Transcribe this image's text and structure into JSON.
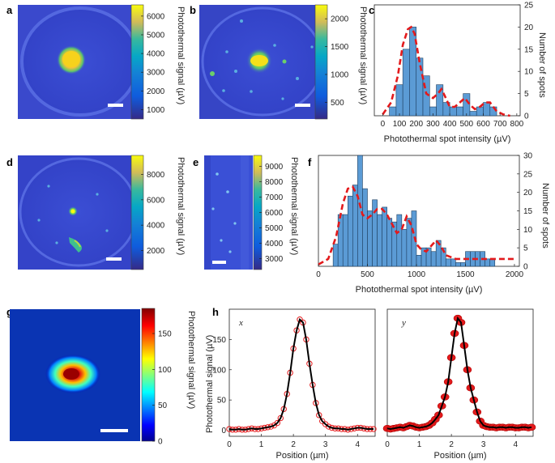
{
  "colors": {
    "bar_fill": "#5b9bd5",
    "fit_line": "#e31a1c",
    "profile_line": "#000000",
    "parula_dark": "#352a87",
    "parula_mid": "#1fb3b4",
    "parula_yellow": "#f9fb0e",
    "jet_high": "#800000"
  },
  "panel_labels": [
    "a",
    "b",
    "c",
    "d",
    "e",
    "f",
    "g",
    "h"
  ],
  "images": {
    "a": {
      "colorbar": {
        "ticks": [
          "6000",
          "5000",
          "4000",
          "3000",
          "2000",
          "1000"
        ],
        "values": [
          6000,
          5000,
          4000,
          3000,
          2000,
          1000
        ],
        "min": 500,
        "max": 6600,
        "label": "Photothermal signal (µV)"
      }
    },
    "b": {
      "colorbar": {
        "ticks": [
          "2000",
          "1500",
          "1000",
          "500"
        ],
        "values": [
          2000,
          1500,
          1000,
          500
        ],
        "min": 200,
        "max": 2250,
        "label": "Photothermal signal (µV)"
      }
    },
    "d": {
      "colorbar": {
        "ticks": [
          "8000",
          "6000",
          "4000",
          "2000"
        ],
        "values": [
          8000,
          6000,
          4000,
          2000
        ],
        "min": 500,
        "max": 9500,
        "label": "Photothermal signal (µV)"
      }
    },
    "e": {
      "colorbar": {
        "ticks": [
          "9000",
          "8000",
          "7000",
          "6000",
          "5000",
          "4000",
          "3000"
        ],
        "values": [
          9000,
          8000,
          7000,
          6000,
          5000,
          4000,
          3000
        ],
        "min": 2300,
        "max": 9700,
        "label": "Photothermal signal (µV)"
      }
    },
    "g": {
      "colorbar": {
        "ticks": [
          "150",
          "100",
          "50",
          "0"
        ],
        "values": [
          150,
          100,
          50,
          0
        ],
        "min": 0,
        "max": 185,
        "label": "Photothermal signal (µV)"
      }
    }
  },
  "chart_data": [
    {
      "panel": "c",
      "type": "bar",
      "xlabel": "Photothermal spot intensity (µV)",
      "ylabel": "Number of spots",
      "xlim": [
        -50,
        820
      ],
      "ylim": [
        0,
        25
      ],
      "xticks": [
        0,
        100,
        200,
        300,
        400,
        500,
        600,
        700,
        800
      ],
      "yticks": [
        0,
        5,
        10,
        15,
        20,
        25
      ],
      "bin_width": 40,
      "bin_starts": [
        40,
        80,
        120,
        160,
        200,
        240,
        280,
        320,
        360,
        400,
        440,
        480,
        520,
        560,
        600,
        640,
        680
      ],
      "values": [
        2,
        7,
        15,
        20,
        13,
        9,
        2,
        7,
        3,
        2,
        2,
        5,
        1,
        2,
        3,
        2,
        0
      ],
      "fit_x": [
        0,
        50,
        90,
        120,
        150,
        170,
        190,
        220,
        260,
        300,
        330,
        350,
        370,
        400,
        430,
        460,
        490,
        520,
        550,
        580,
        610,
        640,
        680,
        720,
        760
      ],
      "fit_y": [
        0.3,
        3,
        9,
        16,
        19.5,
        20,
        18.5,
        12,
        5,
        4,
        5,
        6,
        4.5,
        2,
        2,
        3,
        4,
        2.5,
        1.5,
        2,
        3,
        3,
        1,
        0.3,
        0
      ]
    },
    {
      "panel": "f",
      "type": "bar",
      "xlabel": "Photothermal spot intensity (µV)",
      "ylabel": "Number of spots",
      "xlim": [
        0,
        2050
      ],
      "ylim": [
        0,
        30
      ],
      "xticks": [
        0,
        500,
        1000,
        1500,
        2000
      ],
      "yticks": [
        0,
        5,
        10,
        15,
        20,
        25,
        30
      ],
      "bin_width": 50,
      "bin_starts": [
        150,
        200,
        250,
        300,
        350,
        400,
        450,
        500,
        550,
        600,
        650,
        700,
        750,
        800,
        850,
        900,
        950,
        1000,
        1050,
        1100,
        1150,
        1200,
        1250,
        1300,
        1350,
        1400,
        1450,
        1500,
        1550,
        1600,
        1650,
        1700,
        1750,
        1800
      ],
      "values": [
        6,
        14,
        14,
        19,
        22,
        30,
        21,
        15,
        18,
        14,
        16,
        13,
        12,
        14,
        10,
        13,
        15,
        3,
        5,
        5,
        4,
        7,
        5,
        2,
        2,
        1,
        1,
        4,
        4,
        4,
        4,
        2,
        2,
        0
      ],
      "fit_x": [
        0,
        100,
        180,
        250,
        300,
        350,
        400,
        450,
        500,
        550,
        600,
        650,
        700,
        750,
        800,
        850,
        900,
        950,
        1000,
        1050,
        1100,
        1150,
        1200,
        1250,
        1300,
        1400,
        1500,
        1600,
        1700,
        1800,
        1900,
        2000
      ],
      "fit_y": [
        0.5,
        2,
        8,
        17,
        21,
        21.5,
        19,
        14,
        13,
        14,
        15.5,
        15.5,
        14,
        11.5,
        9,
        10,
        13.5,
        11,
        6,
        4.5,
        4,
        5.5,
        7,
        5.5,
        3,
        2,
        2,
        2,
        2,
        2,
        2,
        2
      ]
    },
    {
      "panel": "h-x",
      "type": "line",
      "label": "x",
      "xlabel": "Position (µm)",
      "ylabel": "Photothermal signal (µV)",
      "xlim": [
        0,
        4.55
      ],
      "ylim": [
        -10,
        200
      ],
      "xticks": [
        0,
        1,
        2,
        3,
        4
      ],
      "yticks": [
        0,
        50,
        100,
        150
      ],
      "x": [
        0,
        0.1,
        0.2,
        0.3,
        0.4,
        0.5,
        0.6,
        0.7,
        0.8,
        0.9,
        1.0,
        1.1,
        1.2,
        1.3,
        1.4,
        1.5,
        1.6,
        1.7,
        1.8,
        1.9,
        2.0,
        2.1,
        2.2,
        2.3,
        2.4,
        2.5,
        2.6,
        2.7,
        2.8,
        2.9,
        3.0,
        3.1,
        3.2,
        3.3,
        3.4,
        3.5,
        3.6,
        3.7,
        3.8,
        3.9,
        4.0,
        4.1,
        4.2,
        4.3,
        4.4,
        4.5
      ],
      "y": [
        2,
        1,
        1,
        2,
        1,
        1,
        2,
        3,
        2,
        2,
        3,
        4,
        5,
        6,
        8,
        12,
        20,
        35,
        60,
        95,
        135,
        165,
        183,
        178,
        150,
        110,
        75,
        45,
        25,
        15,
        10,
        6,
        4,
        3,
        3,
        2,
        2,
        1,
        2,
        3,
        4,
        4,
        3,
        2,
        2,
        2
      ]
    },
    {
      "panel": "h-y",
      "type": "line",
      "label": "y",
      "xlabel": "Position (µm)",
      "ylabel": "",
      "xlim": [
        0,
        4.55
      ],
      "ylim": [
        -10,
        200
      ],
      "xticks": [
        0,
        1,
        2,
        3,
        4
      ],
      "yticks": [],
      "x": [
        0,
        0.1,
        0.2,
        0.3,
        0.4,
        0.5,
        0.6,
        0.7,
        0.8,
        0.9,
        1.0,
        1.1,
        1.2,
        1.3,
        1.4,
        1.5,
        1.6,
        1.7,
        1.8,
        1.9,
        2.0,
        2.1,
        2.2,
        2.3,
        2.4,
        2.5,
        2.6,
        2.7,
        2.8,
        2.9,
        3.0,
        3.1,
        3.2,
        3.3,
        3.4,
        3.5,
        3.6,
        3.7,
        3.8,
        3.9,
        4.0,
        4.1,
        4.2,
        4.3,
        4.4,
        4.5
      ],
      "y": [
        3,
        2,
        3,
        4,
        5,
        4,
        6,
        8,
        7,
        5,
        4,
        5,
        6,
        8,
        12,
        18,
        25,
        40,
        55,
        80,
        120,
        160,
        185,
        178,
        140,
        100,
        70,
        50,
        30,
        15,
        8,
        6,
        5,
        5,
        4,
        5,
        5,
        4,
        5,
        5,
        4,
        4,
        5,
        5,
        4,
        5
      ]
    }
  ]
}
